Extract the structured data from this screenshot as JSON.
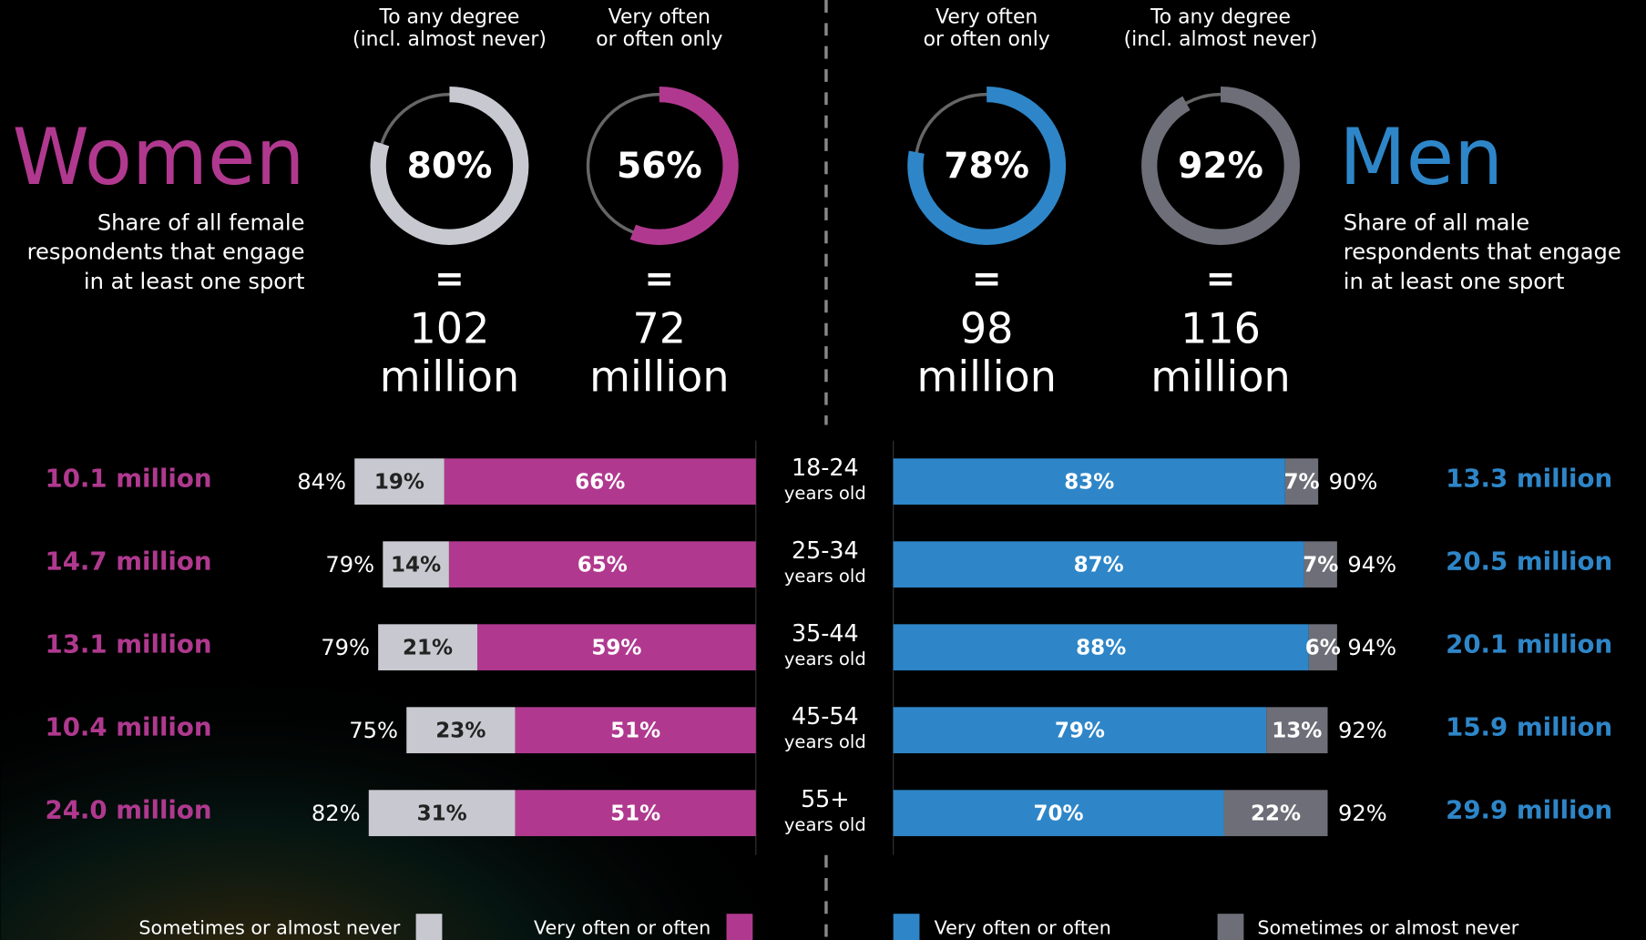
{
  "women": {
    "title": "Women",
    "subtitle": [
      "Share of all female",
      "respondents that engage",
      "in at least one sport"
    ],
    "donuts": [
      {
        "header": [
          "To any degree",
          "(incl. almost never)"
        ],
        "value": 80,
        "value_label": "80%",
        "equals": "=",
        "count": "102",
        "unit": "million",
        "color": "#c8c8d0"
      },
      {
        "header": [
          "Very often",
          "or often only"
        ],
        "value": 56,
        "value_label": "56%",
        "equals": "=",
        "count": "72",
        "unit": "million",
        "color": "#b0398f"
      }
    ],
    "rows": [
      {
        "population": "10.1 million",
        "total": 84,
        "total_label": "84%",
        "sometimes": 19,
        "sometimes_label": "19%",
        "often": 66,
        "often_label": "66%"
      },
      {
        "population": "14.7 million",
        "total": 79,
        "total_label": "79%",
        "sometimes": 14,
        "sometimes_label": "14%",
        "often": 65,
        "often_label": "65%"
      },
      {
        "population": "13.1 million",
        "total": 79,
        "total_label": "79%",
        "sometimes": 21,
        "sometimes_label": "21%",
        "often": 59,
        "often_label": "59%"
      },
      {
        "population": "10.4 million",
        "total": 75,
        "total_label": "75%",
        "sometimes": 23,
        "sometimes_label": "23%",
        "often": 51,
        "often_label": "51%"
      },
      {
        "population": "24.0 million",
        "total": 82,
        "total_label": "82%",
        "sometimes": 31,
        "sometimes_label": "31%",
        "often": 51,
        "often_label": "51%"
      }
    ],
    "sometimes_color": "#c8c8d0",
    "often_color": "#b0398f"
  },
  "men": {
    "title": "Men",
    "subtitle": [
      "Share of all male",
      "respondents that engage",
      "in at least one sport"
    ],
    "donuts": [
      {
        "header": [
          "Very often",
          "or often only"
        ],
        "value": 78,
        "value_label": "78%",
        "equals": "=",
        "count": "98",
        "unit": "million",
        "color": "#2e86c8"
      },
      {
        "header": [
          "To any degree",
          "(incl. almost never)"
        ],
        "value": 92,
        "value_label": "92%",
        "equals": "=",
        "count": "116",
        "unit": "million",
        "color": "#6e6e78"
      }
    ],
    "rows": [
      {
        "population": "13.3 million",
        "total": 90,
        "total_label": "90%",
        "often": 83,
        "often_label": "83%",
        "sometimes": 7,
        "sometimes_label": "7%"
      },
      {
        "population": "20.5 million",
        "total": 94,
        "total_label": "94%",
        "often": 87,
        "often_label": "87%",
        "sometimes": 7,
        "sometimes_label": "7%"
      },
      {
        "population": "20.1 million",
        "total": 94,
        "total_label": "94%",
        "often": 88,
        "often_label": "88%",
        "sometimes": 6,
        "sometimes_label": "6%"
      },
      {
        "population": "15.9 million",
        "total": 92,
        "total_label": "92%",
        "often": 79,
        "often_label": "79%",
        "sometimes": 13,
        "sometimes_label": "13%"
      },
      {
        "population": "29.9 million",
        "total": 92,
        "total_label": "92%",
        "often": 70,
        "often_label": "70%",
        "sometimes": 22,
        "sometimes_label": "22%"
      }
    ],
    "sometimes_color": "#6e6e78",
    "often_color": "#2e86c8"
  },
  "age_groups": [
    {
      "range": "18-24",
      "unit": "years old"
    },
    {
      "range": "25-34",
      "unit": "years old"
    },
    {
      "range": "35-44",
      "unit": "years old"
    },
    {
      "range": "45-54",
      "unit": "years old"
    },
    {
      "range": "55+",
      "unit": "years old"
    }
  ],
  "legend": [
    {
      "label": "Sometimes or almost never",
      "color": "#c8c8d0"
    },
    {
      "label": "Very often or often",
      "color": "#b0398f"
    },
    {
      "label": "Very often or often",
      "color": "#2e86c8"
    },
    {
      "label": "Sometimes or almost never",
      "color": "#6e6e78"
    }
  ]
}
